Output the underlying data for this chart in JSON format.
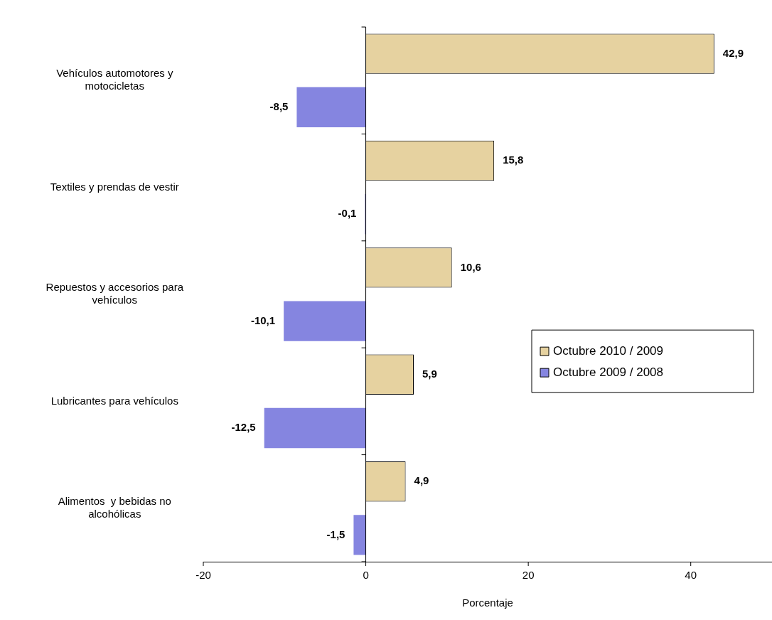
{
  "chart_data": {
    "type": "bar",
    "orientation": "horizontal",
    "xlabel": "Porcentaje",
    "categories": [
      "Vehículos automotores y motocicletas",
      "Textiles y prendas de vestir",
      "Repuestos y accesorios para vehículos",
      "Lubricantes para vehículos",
      "Alimentos  y bebidas no alcohólicas"
    ],
    "series": [
      {
        "name": "Octubre 2010 / 2009",
        "color": "#e6d2a0",
        "values": [
          42.9,
          15.8,
          10.6,
          5.9,
          4.9
        ],
        "value_labels": [
          "42,9",
          "15,8",
          "10,6",
          "5,9",
          "4,9"
        ]
      },
      {
        "name": "Octubre 2009 / 2008",
        "color": "#8585e0",
        "values": [
          -8.5,
          -0.1,
          -10.1,
          -12.5,
          -1.5
        ],
        "value_labels": [
          "-8,5",
          "-0,1",
          "-10,1",
          "-12,5",
          "-1,5"
        ]
      }
    ],
    "xlim": [
      -20,
      50
    ],
    "xticks": [
      -20,
      0,
      20,
      40
    ],
    "legend": "right"
  }
}
